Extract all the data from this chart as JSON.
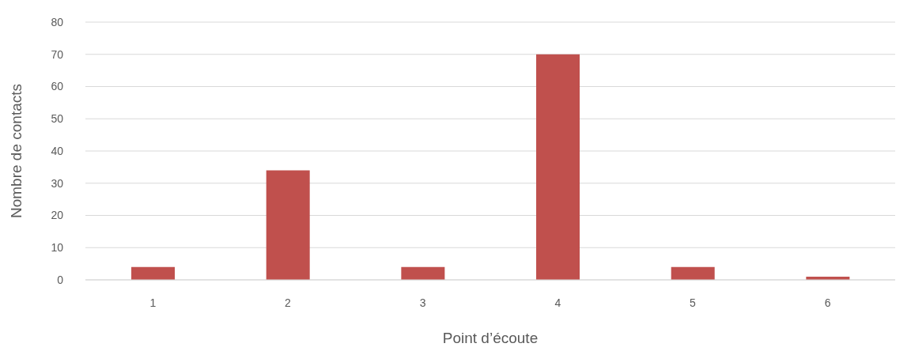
{
  "chart_data": {
    "type": "bar",
    "xlabel": "Point d’écoute",
    "ylabel": "Nombre de contacts",
    "categories": [
      "1",
      "2",
      "3",
      "4",
      "5",
      "6"
    ],
    "values": [
      4,
      34,
      4,
      70,
      4,
      1
    ],
    "color": "#c0504d",
    "ylim": [
      0,
      80
    ],
    "yticks": [
      0,
      10,
      20,
      30,
      40,
      50,
      60,
      70,
      80
    ],
    "grid": "y",
    "legend": false
  }
}
